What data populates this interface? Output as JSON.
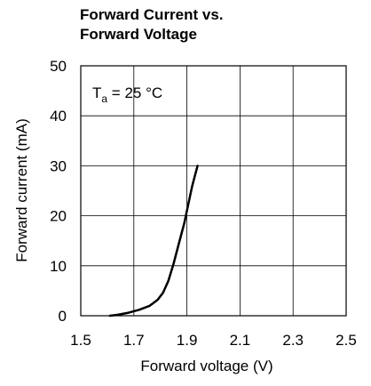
{
  "chart_data": {
    "type": "line",
    "title": [
      "Forward Current vs.",
      "Forward Voltage"
    ],
    "xlabel": "Forward voltage (V)",
    "ylabel": "Forward current (mA)",
    "xlim": [
      1.5,
      2.5
    ],
    "ylim": [
      0,
      50
    ],
    "xticks": [
      1.5,
      1.7,
      1.9,
      2.1,
      2.3,
      2.5
    ],
    "xtick_labels": [
      "1.5",
      "1.7",
      "1.9",
      "2.1",
      "2.3",
      "2.5"
    ],
    "yticks": [
      0,
      10,
      20,
      30,
      40,
      50
    ],
    "ytick_labels": [
      "0",
      "10",
      "20",
      "30",
      "40",
      "50"
    ],
    "grid": true,
    "annotation": {
      "base": "T",
      "sub": "a",
      "rest": " = 25 °C"
    },
    "series": [
      {
        "color": "#000000",
        "x": [
          1.61,
          1.64,
          1.68,
          1.72,
          1.76,
          1.79,
          1.81,
          1.83,
          1.85,
          1.87,
          1.89,
          1.91,
          1.92,
          1.93,
          1.94
        ],
        "y": [
          0.0,
          0.2,
          0.6,
          1.2,
          2.0,
          3.2,
          4.6,
          7.0,
          10.5,
          14.5,
          18.5,
          23.5,
          26.0,
          28.0,
          30.0
        ]
      }
    ]
  }
}
